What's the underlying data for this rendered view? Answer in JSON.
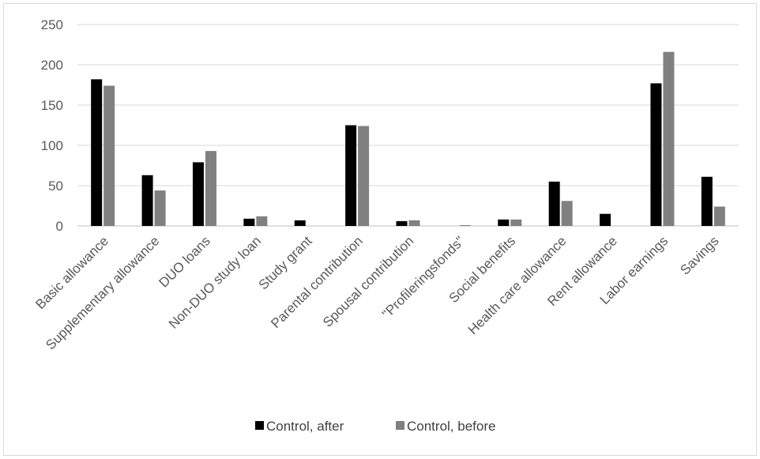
{
  "chart_data": {
    "type": "bar",
    "categories": [
      "Basic allowance",
      "Supplementary allowance",
      "DUO loans",
      "Non-DUO study loan",
      "Study grant",
      "Parental contribution",
      "Spousal contribution",
      "\"Profileringsfonds\"",
      "Social benefits",
      "Health care allowance",
      "Rent allowance",
      "Labor earnings",
      "Savings"
    ],
    "series": [
      {
        "name": "Control, after",
        "color": "#000000",
        "values": [
          182,
          63,
          79,
          9,
          7,
          125,
          6,
          0,
          8,
          55,
          15,
          177,
          61
        ]
      },
      {
        "name": "Control, before",
        "color": "#808080",
        "values": [
          174,
          44,
          93,
          12,
          0,
          124,
          7,
          1,
          8,
          31,
          0,
          216,
          24
        ]
      }
    ],
    "yticks": [
      "0",
      "50",
      "100",
      "150",
      "200",
      "250"
    ],
    "ylim": [
      0,
      250
    ],
    "grid": true,
    "legend": "bottom",
    "title": "",
    "xlabel": "",
    "ylabel": ""
  }
}
